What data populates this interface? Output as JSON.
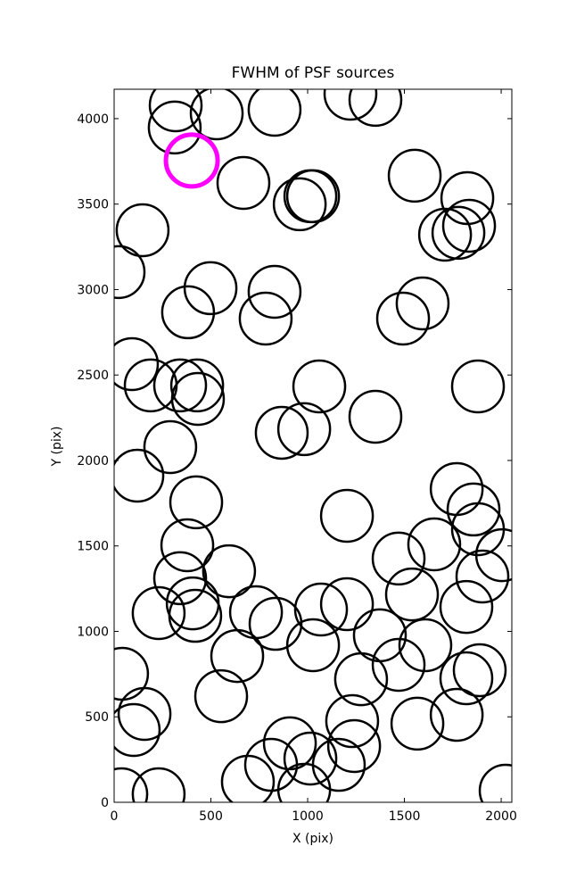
{
  "chart_data": {
    "type": "scatter",
    "title": "FWHM of PSF sources",
    "x_label": "X (pix)",
    "y_label": "Y (pix)",
    "xlim": [
      0,
      2055
    ],
    "ylim": [
      0,
      4172
    ],
    "xticks": [
      0,
      500,
      1000,
      1500,
      2000
    ],
    "yticks": [
      0,
      500,
      1000,
      1500,
      2000,
      2500,
      3000,
      3500,
      4000
    ],
    "series": [
      {
        "color": "#000000",
        "x": [
          318,
          530,
          313,
          829,
          1221,
          1350,
          668,
          959,
          1014,
          1028,
          1553,
          1825,
          1710,
          1779,
          1834,
          147,
          23,
          498,
          829,
          382,
          783,
          1493,
          1594,
          92,
          189,
          341,
          429,
          433,
          1060,
          1880,
          866,
          982,
          1350,
          290,
          120,
          424,
          1770,
          1857,
          1880,
          1203,
          2005,
          378,
          1470,
          1654,
          1903,
          594,
          341,
          406,
          419,
          230,
          733,
          834,
          1069,
          1203,
          1539,
          1820,
          1028,
          1373,
          1608,
          1470,
          636,
          1276,
          1820,
          1889,
          41,
          553,
          157,
          101,
          1230,
          1567,
          1770,
          908,
          1240,
          1014,
          811,
          691,
          1161,
          982,
          230,
          37,
          2023
        ],
        "values": [
          4078,
          4031,
          3948,
          4052,
          4146,
          4110,
          3624,
          3499,
          3546,
          3546,
          3666,
          3535,
          3321,
          3332,
          3373,
          3347,
          3102,
          3008,
          2987,
          2867,
          2830,
          2830,
          2919,
          2564,
          2439,
          2439,
          2439,
          2360,
          2433,
          2433,
          2162,
          2183,
          2256,
          2078,
          1911,
          1755,
          1833,
          1713,
          1598,
          1676,
          1446,
          1504,
          1426,
          1509,
          1321,
          1352,
          1311,
          1164,
          1091,
          1107,
          1112,
          1044,
          1128,
          1159,
          1216,
          1143,
          919,
          977,
          919,
          804,
          856,
          720,
          726,
          773,
          752,
          621,
          517,
          423,
          475,
          460,
          512,
          345,
          329,
          256,
          219,
          120,
          219,
          73,
          47,
          47,
          68
        ]
      },
      {
        "color": "#ff00ff",
        "x": [
          401
        ],
        "values": [
          3755
        ]
      }
    ]
  }
}
